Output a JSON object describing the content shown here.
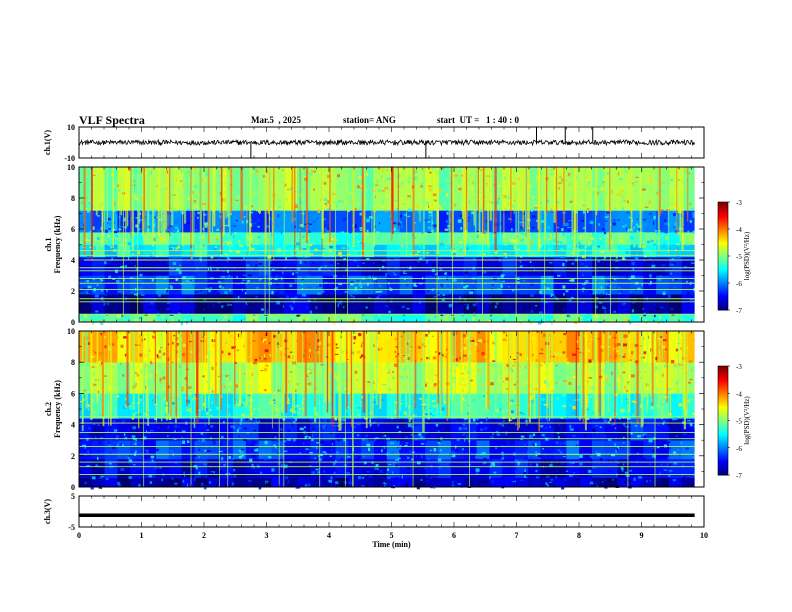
{
  "header": {
    "title": "VLF Spectra",
    "date": "Mar.5  , 2025",
    "station": "station= ANG",
    "start_ut": "start  UT =   1 : 40 : 0"
  },
  "chart_data": [
    {
      "type": "line",
      "panel": "ch1-waveform",
      "ylabel": "ch.1(V)",
      "ylim": [
        -10,
        10
      ],
      "yticks": [
        "10",
        "-10"
      ],
      "baseline": 0,
      "spikes_x_min": [
        2.75,
        5.55,
        7.32,
        7.78,
        8.22
      ],
      "spike_top": [
        7.32,
        7.78,
        8.22
      ],
      "color": "#000000"
    },
    {
      "type": "heatmap",
      "panel": "ch1-spectrogram",
      "ylabel_line1": "ch.1",
      "ylabel_line2": "Frequency (kHz)",
      "ylim": [
        0,
        10
      ],
      "yticks": [
        "0",
        "2",
        "4",
        "6",
        "8",
        "10"
      ],
      "xlim": [
        0,
        10
      ],
      "data_end_min": 9.85,
      "colorbar": {
        "label": "log(PSD)(V²/Hz)",
        "range": [
          -7,
          -3
        ],
        "ticks": [
          "-3",
          "-4",
          "-5",
          "-6",
          "-7"
        ]
      },
      "bands_khz": [
        {
          "from": 0.0,
          "to": 0.5,
          "level": -5.2
        },
        {
          "from": 0.5,
          "to": 1.8,
          "level": -6.8
        },
        {
          "from": 1.8,
          "to": 3.0,
          "level": -6.2
        },
        {
          "from": 3.0,
          "to": 4.2,
          "level": -6.5
        },
        {
          "from": 4.2,
          "to": 5.0,
          "level": -5.5
        },
        {
          "from": 5.0,
          "to": 5.8,
          "level": -5.2
        },
        {
          "from": 5.8,
          "to": 7.2,
          "level": -6.1
        },
        {
          "from": 7.2,
          "to": 10.0,
          "level": -4.9
        }
      ],
      "lines_khz": [
        0.5,
        1.3,
        1.5,
        2.1,
        2.5,
        2.8,
        3.3,
        3.5,
        4.0,
        4.3,
        4.6
      ]
    },
    {
      "type": "heatmap",
      "panel": "ch2-spectrogram",
      "ylabel_line1": "ch.2",
      "ylabel_line2": "Frequency (kHz)",
      "ylim": [
        0,
        10
      ],
      "yticks": [
        "0",
        "2",
        "4",
        "6",
        "8",
        "10"
      ],
      "xlim": [
        0,
        10
      ],
      "data_end_min": 9.85,
      "colorbar": {
        "label": "log(PSD)(V²/Hz)",
        "range": [
          -7,
          -3
        ],
        "ticks": [
          "-3",
          "-4",
          "-5",
          "-6",
          "-7"
        ]
      },
      "bands_khz": [
        {
          "from": 0.0,
          "to": 0.6,
          "level": -6.8
        },
        {
          "from": 0.6,
          "to": 1.8,
          "level": -6.6
        },
        {
          "from": 1.8,
          "to": 3.0,
          "level": -6.3
        },
        {
          "from": 3.0,
          "to": 4.4,
          "level": -6.5
        },
        {
          "from": 4.4,
          "to": 6.0,
          "level": -5.4
        },
        {
          "from": 6.0,
          "to": 8.0,
          "level": -4.8
        },
        {
          "from": 8.0,
          "to": 10.0,
          "level": -4.3
        }
      ],
      "lines_khz": [
        0.8,
        1.3,
        1.6,
        2.1,
        2.6,
        3.1,
        3.5,
        4.1,
        4.5
      ]
    },
    {
      "type": "line",
      "panel": "ch3-waveform",
      "ylabel": "ch.3(V)",
      "ylim": [
        -5,
        5
      ],
      "yticks": [
        "5",
        "-5"
      ],
      "baseline": -1.2,
      "xlabel": "Time  (min)",
      "xlim": [
        0,
        10
      ],
      "xticks": [
        "0",
        "1",
        "2",
        "3",
        "4",
        "5",
        "6",
        "7",
        "8",
        "9",
        "10"
      ]
    }
  ]
}
